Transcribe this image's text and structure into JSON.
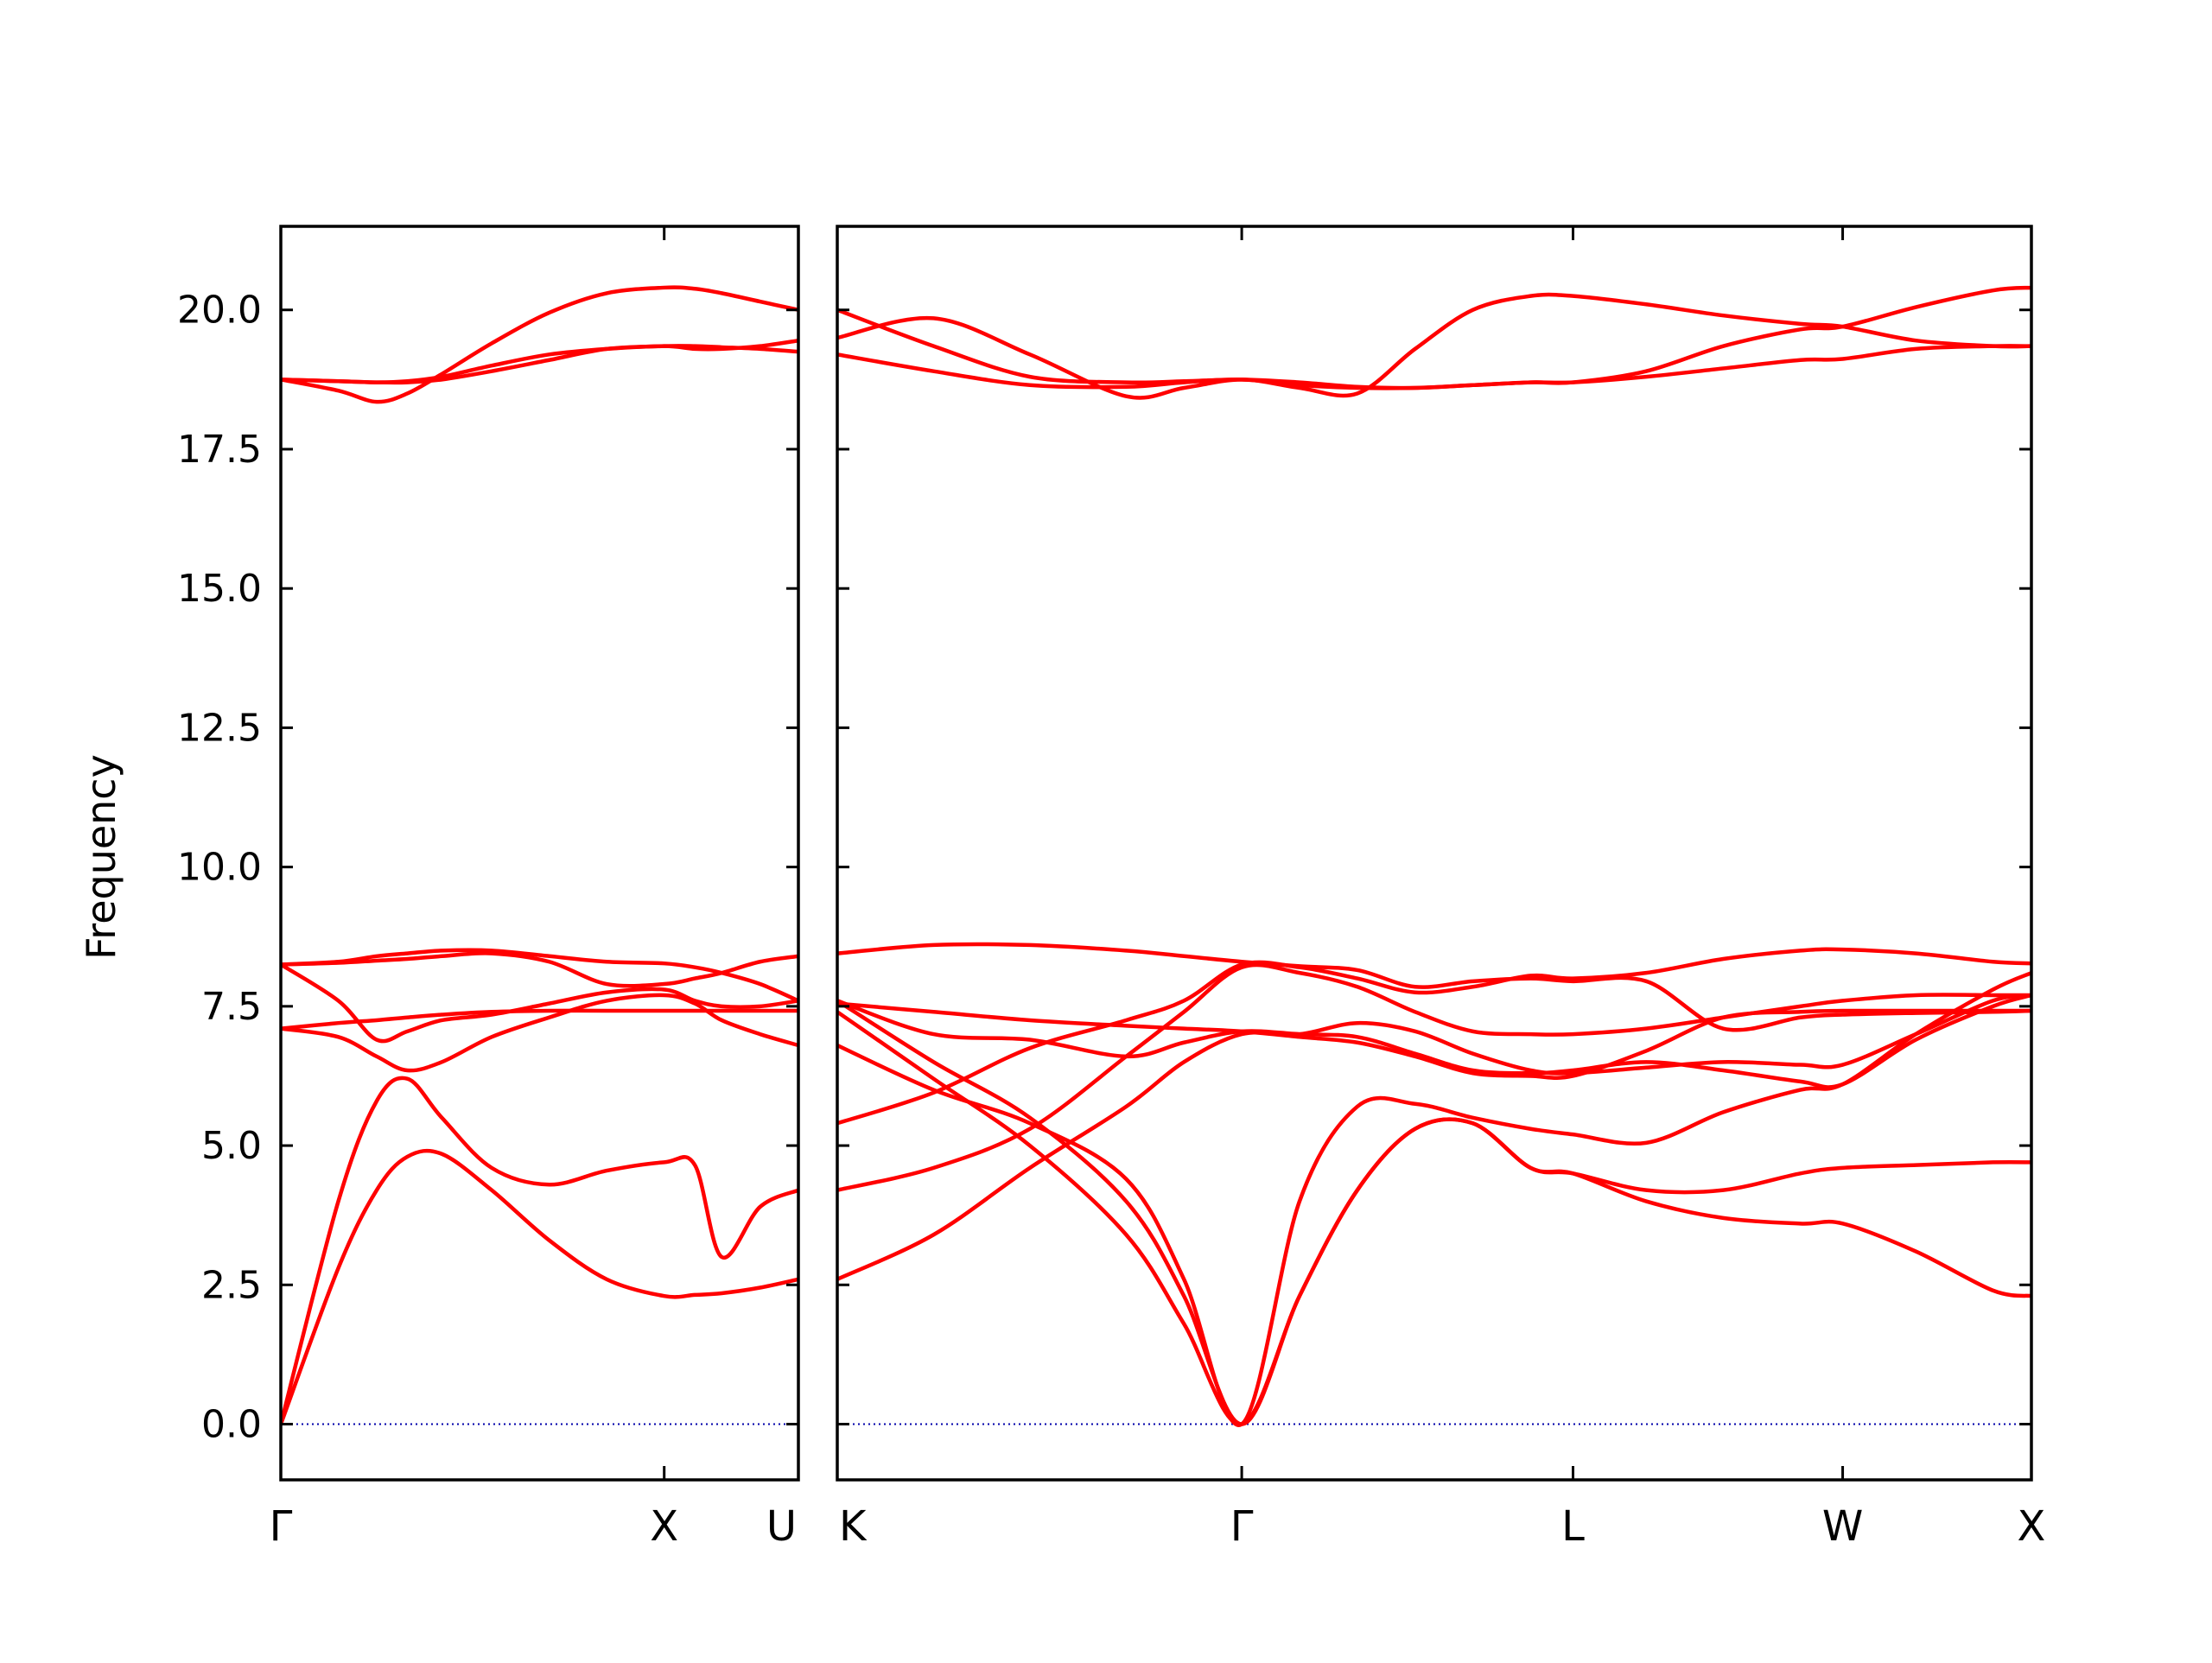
{
  "chart_data": {
    "type": "line",
    "title": "",
    "ylabel": "Frequency",
    "xlabel": "",
    "ylim": [
      -1.0,
      21.5
    ],
    "yticks": [
      "0.0",
      "2.5",
      "5.0",
      "7.5",
      "10.0",
      "12.5",
      "15.0",
      "17.5",
      "20.0"
    ],
    "grid": false,
    "legend": "none",
    "colors": {
      "bands": "#ff0000",
      "zero_line": "#0000aa",
      "axes": "#000000"
    },
    "panels": [
      {
        "path": "Γ-X-U",
        "x_range": [
          0.0,
          1.35
        ],
        "ticks": [
          {
            "label": "Γ",
            "x": 0.0
          },
          {
            "label": "X",
            "x": 1.0
          },
          {
            "label": "U",
            "x": 1.35
          }
        ],
        "bands": [
          {
            "x": [
              0,
              0.15,
              0.25,
              0.33,
              0.42,
              0.55,
              0.7,
              0.85,
              1.0,
              1.08,
              1.15,
              1.25,
              1.35
            ],
            "y": [
              0.0,
              2.8,
              4.2,
              4.8,
              4.85,
              4.2,
              3.3,
              2.6,
              2.3,
              2.32,
              2.35,
              2.45,
              2.6
            ]
          },
          {
            "x": [
              0,
              0.15,
              0.25,
              0.33,
              0.42,
              0.55,
              0.7,
              0.85,
              1.0,
              1.08,
              1.15,
              1.25,
              1.35
            ],
            "y": [
              0.0,
              4.0,
              5.8,
              6.2,
              5.5,
              4.6,
              4.3,
              4.55,
              4.7,
              4.65,
              3.0,
              3.9,
              4.2
            ]
          },
          {
            "x": [
              0,
              0.15,
              0.25,
              0.33,
              0.42,
              0.55,
              0.7,
              0.85,
              1.0,
              1.08,
              1.15,
              1.25,
              1.35
            ],
            "y": [
              7.1,
              6.95,
              6.6,
              6.35,
              6.5,
              6.95,
              7.3,
              7.6,
              7.7,
              7.55,
              7.25,
              7.0,
              6.8
            ]
          },
          {
            "x": [
              0,
              0.15,
              0.25,
              0.33,
              0.42,
              0.55,
              0.7,
              0.85,
              1.0,
              1.08,
              1.15,
              1.25,
              1.35
            ],
            "y": [
              7.1,
              7.2,
              7.25,
              7.3,
              7.35,
              7.4,
              7.42,
              7.42,
              7.42,
              7.42,
              7.42,
              7.42,
              7.42
            ]
          },
          {
            "x": [
              0,
              0.15,
              0.25,
              0.33,
              0.42,
              0.55,
              0.7,
              0.85,
              1.0,
              1.08,
              1.15,
              1.25,
              1.35
            ],
            "y": [
              8.25,
              7.6,
              6.9,
              7.05,
              7.25,
              7.35,
              7.55,
              7.75,
              7.8,
              7.6,
              7.5,
              7.5,
              7.6
            ]
          },
          {
            "x": [
              0,
              0.15,
              0.25,
              0.33,
              0.42,
              0.55,
              0.7,
              0.85,
              1.0,
              1.08,
              1.15,
              1.25,
              1.35
            ],
            "y": [
              8.25,
              8.3,
              8.4,
              8.45,
              8.5,
              8.5,
              8.4,
              8.3,
              8.27,
              8.2,
              8.1,
              7.9,
              7.6
            ]
          },
          {
            "x": [
              0,
              0.15,
              0.25,
              0.33,
              0.42,
              0.55,
              0.7,
              0.85,
              1.0,
              1.08,
              1.15,
              1.25,
              1.35
            ],
            "y": [
              8.25,
              8.28,
              8.32,
              8.35,
              8.4,
              8.45,
              8.3,
              7.9,
              7.9,
              8.0,
              8.1,
              8.3,
              8.4
            ]
          },
          {
            "x": [
              0,
              0.15,
              0.25,
              0.33,
              0.42,
              0.55,
              0.7,
              0.85,
              1.0,
              1.08,
              1.15,
              1.25,
              1.35
            ],
            "y": [
              18.75,
              18.72,
              18.7,
              18.7,
              18.75,
              18.9,
              19.1,
              19.3,
              19.35,
              19.35,
              19.33,
              19.3,
              19.25
            ]
          },
          {
            "x": [
              0,
              0.15,
              0.25,
              0.33,
              0.42,
              0.55,
              0.7,
              0.85,
              1.0,
              1.08,
              1.15,
              1.25,
              1.35
            ],
            "y": [
              18.75,
              18.55,
              18.35,
              18.5,
              18.85,
              19.4,
              19.95,
              20.3,
              20.4,
              20.38,
              20.3,
              20.15,
              20.0
            ]
          },
          {
            "x": [
              0,
              0.15,
              0.25,
              0.33,
              0.42,
              0.55,
              0.7,
              0.85,
              1.0,
              1.08,
              1.15,
              1.25,
              1.35
            ],
            "y": [
              18.75,
              18.72,
              18.7,
              18.72,
              18.8,
              19.0,
              19.2,
              19.3,
              19.35,
              19.3,
              19.3,
              19.35,
              19.45
            ]
          }
        ]
      },
      {
        "path": "K-Γ-L-W-X",
        "x_range": [
          0.0,
          3.1
        ],
        "ticks": [
          {
            "label": "K",
            "x": 0.0
          },
          {
            "label": "Γ",
            "x": 1.05
          },
          {
            "label": "L",
            "x": 1.91
          },
          {
            "label": "W",
            "x": 2.61
          },
          {
            "label": "X",
            "x": 3.1
          }
        ],
        "bands": [
          {
            "x": [
              0,
              0.25,
              0.5,
              0.75,
              0.9,
              1.05,
              1.2,
              1.35,
              1.5,
              1.65,
              1.8,
              1.91,
              2.1,
              2.3,
              2.5,
              2.61,
              2.8,
              3.0,
              3.1
            ],
            "y": [
              2.6,
              3.4,
              4.6,
              5.7,
              6.5,
              7.0,
              7.0,
              7.2,
              7.05,
              6.65,
              6.35,
              6.3,
              6.4,
              6.5,
              6.45,
              6.45,
              7.0,
              7.6,
              7.7
            ]
          },
          {
            "x": [
              0,
              0.25,
              0.5,
              0.75,
              0.9,
              1.05,
              1.2,
              1.35,
              1.5,
              1.65,
              1.8,
              1.91,
              2.1,
              2.3,
              2.5,
              2.61,
              2.8,
              3.0,
              3.1
            ],
            "y": [
              4.2,
              4.6,
              5.3,
              6.6,
              7.4,
              8.2,
              8.1,
              7.85,
              7.4,
              7.05,
              7.0,
              7.0,
              7.1,
              7.3,
              7.5,
              7.6,
              7.7,
              7.7,
              7.7
            ]
          },
          {
            "x": [
              0,
              0.25,
              0.5,
              0.75,
              0.9,
              1.05,
              1.2,
              1.35,
              1.5,
              1.65,
              1.8,
              1.91,
              2.1,
              2.3,
              2.5,
              2.61,
              2.8,
              3.0,
              3.1
            ],
            "y": [
              5.4,
              5.95,
              6.75,
              7.25,
              7.6,
              8.25,
              8.2,
              8.0,
              7.75,
              7.85,
              8.05,
              8.0,
              8.1,
              8.35,
              8.5,
              8.52,
              8.45,
              8.3,
              8.27
            ]
          },
          {
            "x": [
              0,
              0.25,
              0.5,
              0.75,
              0.9,
              1.05,
              1.2,
              1.35,
              1.5,
              1.65,
              1.8,
              1.91,
              2.1,
              2.3,
              2.5,
              2.61,
              2.8,
              3.0,
              3.1
            ],
            "y": [
              6.8,
              6.0,
              5.4,
              4.4,
              2.6,
              0.0,
              4.0,
              5.7,
              5.75,
              5.5,
              5.3,
              5.2,
              5.05,
              5.6,
              6.0,
              6.1,
              7.0,
              7.8,
              8.1
            ]
          },
          {
            "x": [
              0,
              0.25,
              0.5,
              0.75,
              0.9,
              1.05,
              1.2,
              1.35,
              1.5,
              1.65,
              1.8,
              1.91,
              2.1,
              2.3,
              2.5,
              2.61,
              2.8,
              3.0,
              3.1
            ],
            "y": [
              7.6,
              6.5,
              5.5,
              4.0,
              2.3,
              0.0,
              2.3,
              4.2,
              5.3,
              5.4,
              4.6,
              4.5,
              4.2,
              4.2,
              4.5,
              4.6,
              4.65,
              4.7,
              4.7
            ]
          },
          {
            "x": [
              0,
              0.25,
              0.5,
              0.75,
              0.9,
              1.05,
              1.2,
              1.35,
              1.5,
              1.65,
              1.8,
              1.91,
              2.1,
              2.3,
              2.5,
              2.61,
              2.8,
              3.0,
              3.1
            ],
            "y": [
              7.4,
              6.2,
              5.0,
              3.4,
              1.8,
              0.0,
              2.3,
              4.2,
              5.3,
              5.4,
              4.6,
              4.5,
              4.0,
              3.7,
              3.6,
              3.6,
              3.1,
              2.4,
              2.3
            ]
          },
          {
            "x": [
              0,
              0.25,
              0.5,
              0.75,
              0.9,
              1.05,
              1.2,
              1.35,
              1.5,
              1.65,
              1.8,
              1.91,
              2.1,
              2.3,
              2.5,
              2.61,
              2.8,
              3.0,
              3.1
            ],
            "y": [
              7.6,
              7.0,
              6.9,
              6.6,
              6.85,
              7.05,
              7.0,
              6.95,
              6.65,
              6.35,
              6.3,
              6.35,
              6.5,
              6.35,
              6.15,
              6.1,
              6.9,
              7.5,
              7.7
            ]
          },
          {
            "x": [
              0,
              0.25,
              0.5,
              0.75,
              0.9,
              1.05,
              1.2,
              1.35,
              1.5,
              1.65,
              1.8,
              1.91,
              2.1,
              2.3,
              2.5,
              2.61,
              2.8,
              3.0,
              3.1
            ],
            "y": [
              7.55,
              7.4,
              7.25,
              7.15,
              7.1,
              7.05,
              6.95,
              6.85,
              6.6,
              6.3,
              6.25,
              6.25,
              6.7,
              7.3,
              7.4,
              7.42,
              7.42,
              7.42,
              7.42
            ]
          },
          {
            "x": [
              0,
              0.25,
              0.5,
              0.75,
              0.9,
              1.05,
              1.2,
              1.35,
              1.5,
              1.65,
              1.8,
              1.91,
              2.1,
              2.3,
              2.5,
              2.61,
              2.8,
              3.0,
              3.1
            ],
            "y": [
              8.45,
              8.6,
              8.6,
              8.5,
              8.4,
              8.3,
              8.22,
              8.15,
              7.85,
              7.95,
              8.0,
              7.95,
              7.95,
              7.1,
              7.3,
              7.35,
              7.38,
              7.4,
              7.42
            ]
          },
          {
            "x": [
              0,
              0.25,
              0.5,
              0.75,
              0.9,
              1.05,
              1.2,
              1.35,
              1.5,
              1.65,
              1.8,
              1.91,
              2.1,
              2.3,
              2.5,
              2.61,
              2.8,
              3.0,
              3.1
            ],
            "y": [
              19.2,
              18.9,
              18.65,
              18.62,
              18.7,
              18.75,
              18.65,
              18.6,
              18.6,
              18.65,
              18.7,
              18.7,
              18.8,
              18.95,
              19.1,
              19.12,
              19.3,
              19.35,
              19.35
            ]
          },
          {
            "x": [
              0,
              0.25,
              0.5,
              0.75,
              0.9,
              1.05,
              1.2,
              1.35,
              1.5,
              1.65,
              1.8,
              1.91,
              2.1,
              2.3,
              2.5,
              2.61,
              2.8,
              3.0,
              3.1
            ],
            "y": [
              19.5,
              19.85,
              19.2,
              18.45,
              18.6,
              18.75,
              18.6,
              18.5,
              19.3,
              20.0,
              20.25,
              20.25,
              20.1,
              19.9,
              19.75,
              19.7,
              19.45,
              19.35,
              19.35
            ]
          },
          {
            "x": [
              0,
              0.25,
              0.5,
              0.75,
              0.9,
              1.05,
              1.2,
              1.35,
              1.5,
              1.65,
              1.8,
              1.91,
              2.1,
              2.3,
              2.5,
              2.61,
              2.8,
              3.0,
              3.1
            ],
            "y": [
              20.0,
              19.35,
              18.8,
              18.7,
              18.72,
              18.75,
              18.7,
              18.62,
              18.6,
              18.65,
              18.7,
              18.7,
              18.9,
              19.35,
              19.65,
              19.7,
              20.05,
              20.35,
              20.4
            ]
          }
        ]
      }
    ]
  }
}
